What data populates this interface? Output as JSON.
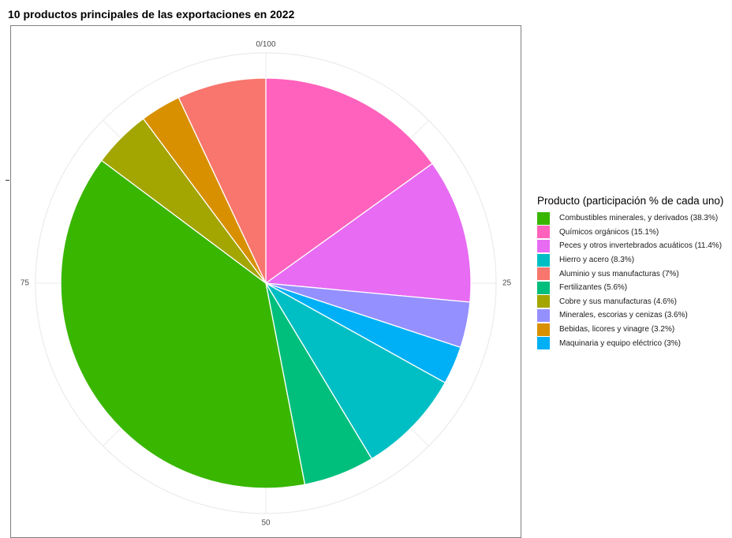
{
  "chart_data": {
    "type": "pie",
    "title": "10 productos principales de las exportaciones en 2022",
    "angle_ticks": [
      "0/100",
      "25",
      "50",
      "75"
    ],
    "legend_title": "Producto (participación % de cada uno)",
    "legend_placement": "right",
    "slices": [
      {
        "label": "Combustibles minerales, y derivados (38.3%)",
        "value": 38.3,
        "color": "#39B600"
      },
      {
        "label": "Químicos orgánicos (15.1%)",
        "value": 15.1,
        "color": "#FF62BC"
      },
      {
        "label": "Peces y otros invertebrados acuáticos (11.4%)",
        "value": 11.4,
        "color": "#E76BF3"
      },
      {
        "label": "Hierro y acero (8.3%)",
        "value": 8.3,
        "color": "#00BFC4"
      },
      {
        "label": "Aluminio y sus manufacturas (7%)",
        "value": 7.0,
        "color": "#F8766D"
      },
      {
        "label": "Fertilizantes (5.6%)",
        "value": 5.6,
        "color": "#00BF7D"
      },
      {
        "label": "Cobre y sus manufacturas (4.6%)",
        "value": 4.6,
        "color": "#A3A500"
      },
      {
        "label": "Minerales, escorias y cenizas (3.6%)",
        "value": 3.6,
        "color": "#9590FF"
      },
      {
        "label": "Bebidas, licores y vinagre (3.2%)",
        "value": 3.2,
        "color": "#D89000"
      },
      {
        "label": "Maquinaria y equipo eléctrico (3%)",
        "value": 3.0,
        "color": "#00B0F6"
      }
    ],
    "clockwise_order": [
      "Químicos orgánicos (15.1%)",
      "Peces y otros invertebrados acuáticos (11.4%)",
      "Minerales, escorias y cenizas (3.6%)",
      "Maquinaria y equipo eléctrico (3%)",
      "Hierro y acero (8.3%)",
      "Fertilizantes (5.6%)",
      "Combustibles minerales, y derivados (38.3%)",
      "Cobre y sus manufacturas (4.6%)",
      "Bebidas, licores y vinagre (3.2%)",
      "Aluminio y sus manufacturas (7%)"
    ]
  }
}
